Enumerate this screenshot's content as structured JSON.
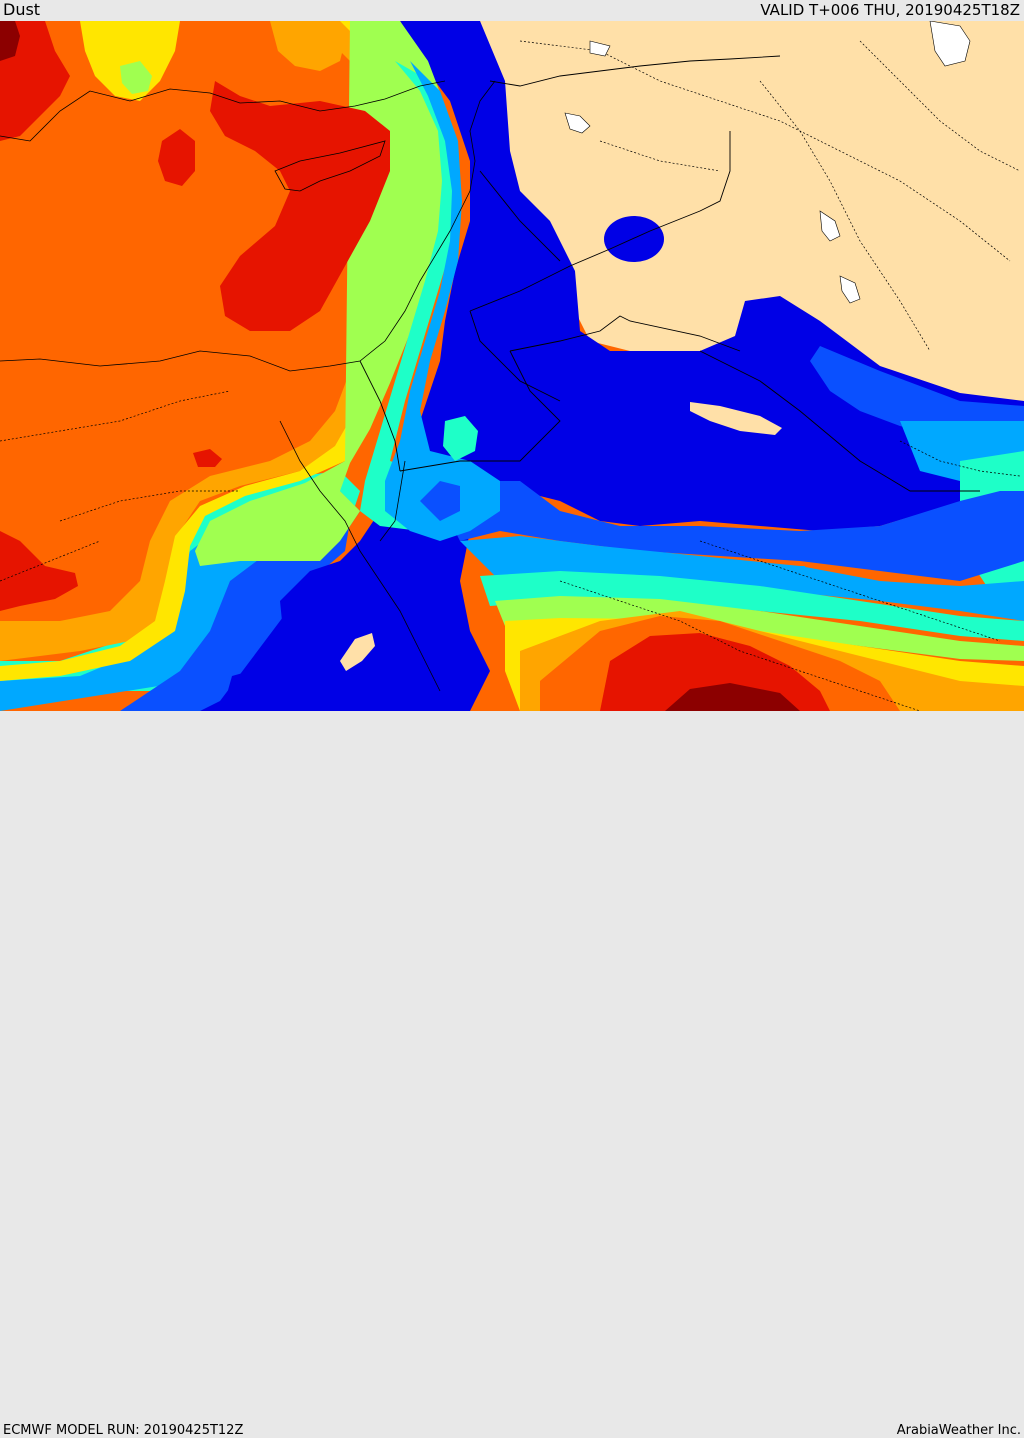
{
  "header": {
    "title": "Dust",
    "valid_time": "VALID T+006 THU, 20190425T18Z"
  },
  "footer": {
    "model_run": "ECMWF MODEL RUN: 20190425T12Z",
    "credit": "ArabiaWeather Inc."
  },
  "map": {
    "palette": {
      "land_clear": "#ffe0a8",
      "level_1": "#0000e6",
      "level_2": "#0a50ff",
      "level_3": "#00a8ff",
      "level_4": "#1effc8",
      "level_5": "#a0ff50",
      "level_6": "#ffe600",
      "level_7": "#ffa500",
      "level_8": "#ff6600",
      "level_9": "#e61400",
      "level_10": "#8c0000",
      "water": "#ffffff",
      "border": "#000000"
    }
  }
}
